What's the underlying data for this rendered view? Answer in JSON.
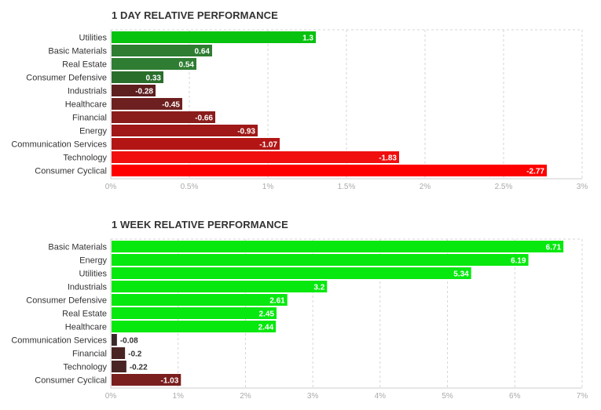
{
  "chart_data": [
    {
      "type": "bar",
      "orientation": "horizontal",
      "title": "1 DAY RELATIVE PERFORMANCE",
      "categories": [
        "Utilities",
        "Basic Materials",
        "Real Estate",
        "Consumer Defensive",
        "Industrials",
        "Healthcare",
        "Financial",
        "Energy",
        "Communication Services",
        "Technology",
        "Consumer Cyclical"
      ],
      "values": [
        1.3,
        0.64,
        0.54,
        0.33,
        -0.28,
        -0.45,
        -0.66,
        -0.93,
        -1.07,
        -1.83,
        -2.77
      ],
      "value_labels": [
        "1.3",
        "0.64",
        "0.54",
        "0.33",
        "-0.28",
        "-0.45",
        "-0.66",
        "-0.93",
        "-1.07",
        "-1.83",
        "-2.77"
      ],
      "colors": [
        "#07c20f",
        "#2e7d32",
        "#2e7d32",
        "#2a6e2c",
        "#5e1f1f",
        "#6e2020",
        "#8a1c1c",
        "#a01818",
        "#b31515",
        "#f00e0e",
        "#ff0000"
      ],
      "xlim": [
        0,
        3
      ],
      "ticks": [
        0,
        0.5,
        1,
        1.5,
        2,
        2.5,
        3
      ],
      "tick_labels": [
        "0%",
        "0.5%",
        "1%",
        "1.5%",
        "2%",
        "2.5%",
        "3%"
      ],
      "xlabel": "",
      "ylabel": "",
      "grid": true,
      "scale": "absolute value"
    },
    {
      "type": "bar",
      "orientation": "horizontal",
      "title": "1 WEEK RELATIVE PERFORMANCE",
      "categories": [
        "Basic Materials",
        "Energy",
        "Utilities",
        "Industrials",
        "Consumer Defensive",
        "Real Estate",
        "Healthcare",
        "Communication Services",
        "Financial",
        "Technology",
        "Consumer Cyclical"
      ],
      "values": [
        6.71,
        6.19,
        5.34,
        3.2,
        2.61,
        2.45,
        2.44,
        -0.08,
        -0.2,
        -0.22,
        -1.03
      ],
      "value_labels": [
        "6.71",
        "6.19",
        "5.34",
        "3.2",
        "2.61",
        "2.45",
        "2.44",
        "-0.08",
        "-0.2",
        "-0.22",
        "-1.03"
      ],
      "colors": [
        "#07e80f",
        "#07e80f",
        "#07e80f",
        "#07e80f",
        "#07e80f",
        "#07e80f",
        "#07e80f",
        "#3a2a2a",
        "#4a2424",
        "#4a2424",
        "#7a1e1e"
      ],
      "xlim": [
        0,
        7
      ],
      "ticks": [
        0,
        1,
        2,
        3,
        4,
        5,
        6,
        7
      ],
      "tick_labels": [
        "0%",
        "1%",
        "2%",
        "3%",
        "4%",
        "5%",
        "6%",
        "7%"
      ],
      "xlabel": "",
      "ylabel": "",
      "grid": true,
      "scale": "absolute value"
    }
  ]
}
